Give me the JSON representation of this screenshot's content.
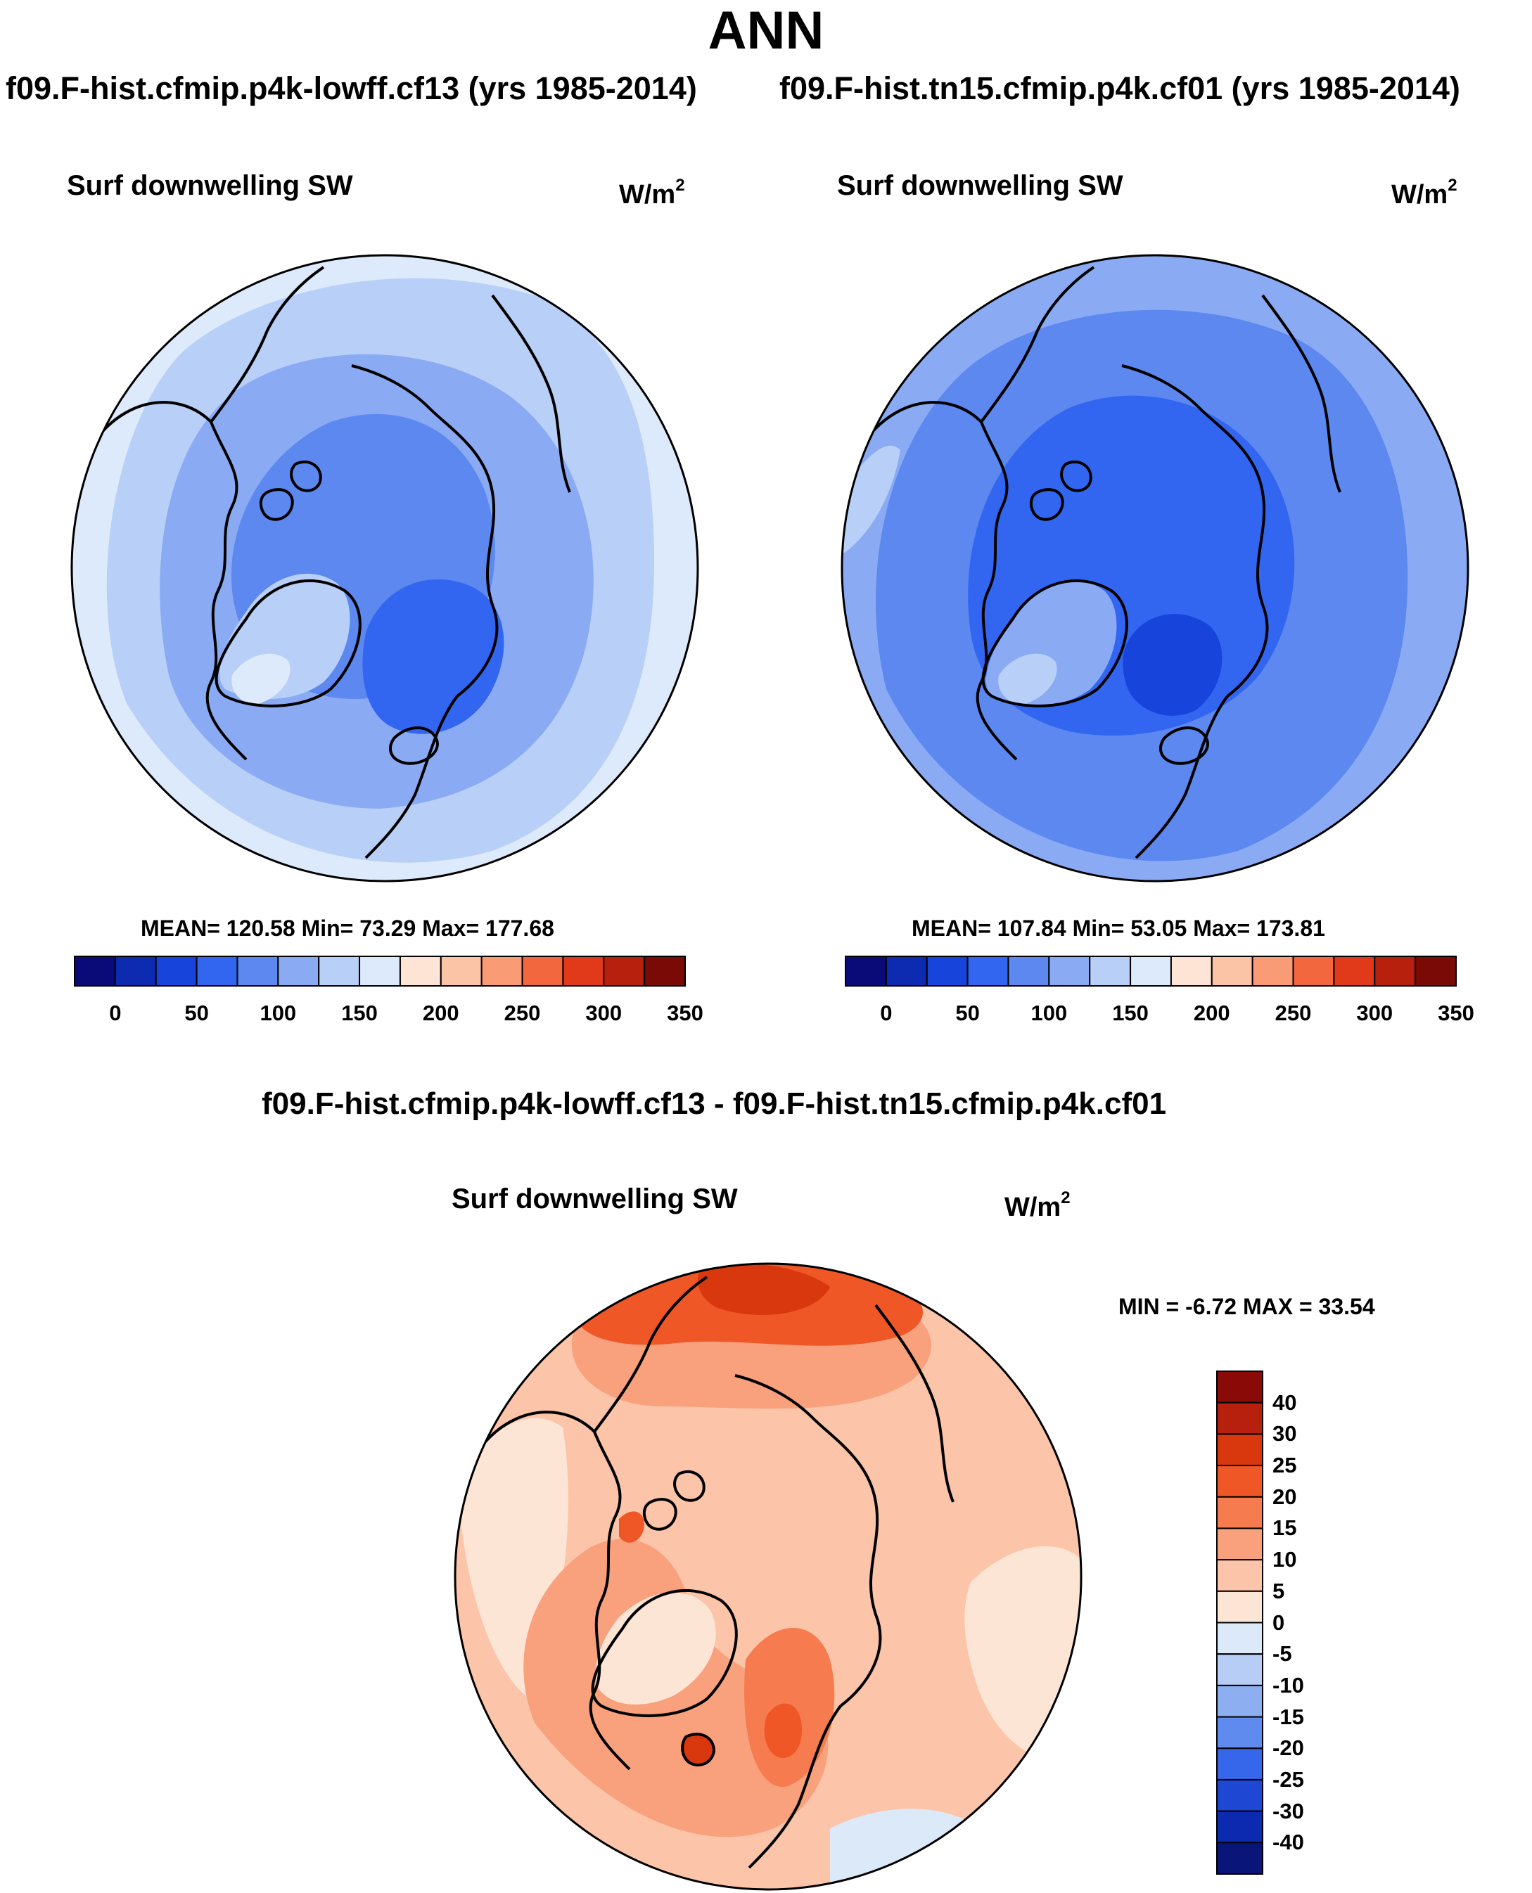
{
  "figure": {
    "title": "ANN",
    "case_a": "f09.F-hist.cfmip.p4k-lowff.cf13 (yrs 1985-2014)",
    "case_b": "f09.F-hist.tn15.cfmip.p4k.cf01 (yrs 1985-2014)",
    "diff_title": "f09.F-hist.cfmip.p4k-lowff.cf13 - f09.F-hist.tn15.cfmip.p4k.cf01"
  },
  "chart_data": [
    {
      "type": "heatmap",
      "projection": "north-polar-stereographic",
      "title": "Surf downwelling SW",
      "units_base": "W/m",
      "units_exp": "2",
      "stats": {
        "mean": 120.58,
        "min": 73.29,
        "max": 177.68
      },
      "stats_text": "MEAN= 120.58  Min=  73.29  Max= 177.68",
      "colorbar": {
        "orientation": "horizontal",
        "ticks": [
          "0",
          "50",
          "100",
          "150",
          "200",
          "250",
          "300",
          "350"
        ],
        "colors": [
          "#0a0a78",
          "#0c2bb0",
          "#1745dc",
          "#3366f0",
          "#5c88f0",
          "#8aabf4",
          "#b8cff8",
          "#ddeafb",
          "#fde4d4",
          "#fcc4a6",
          "#f99b74",
          "#f2673e",
          "#e03a1a",
          "#b8200e",
          "#7a0a06"
        ]
      }
    },
    {
      "type": "heatmap",
      "projection": "north-polar-stereographic",
      "title": "Surf downwelling SW",
      "units_base": "W/m",
      "units_exp": "2",
      "stats": {
        "mean": 107.84,
        "min": 53.05,
        "max": 173.81
      },
      "stats_text": "MEAN= 107.84  Min=  53.05  Max= 173.81",
      "colorbar": {
        "orientation": "horizontal",
        "ticks": [
          "0",
          "50",
          "100",
          "150",
          "200",
          "250",
          "300",
          "350"
        ],
        "colors": [
          "#0a0a78",
          "#0c2bb0",
          "#1745dc",
          "#3366f0",
          "#5c88f0",
          "#8aabf4",
          "#b8cff8",
          "#ddeafb",
          "#fde4d4",
          "#fcc4a6",
          "#f99b74",
          "#f2673e",
          "#e03a1a",
          "#b8200e",
          "#7a0a06"
        ]
      }
    },
    {
      "type": "heatmap",
      "projection": "north-polar-stereographic",
      "title": "Surf downwelling SW",
      "units_base": "W/m",
      "units_exp": "2",
      "stats": {
        "min": -6.72,
        "max": 33.54
      },
      "stats_text": "MIN =  -6.72 MAX =  33.54",
      "colorbar": {
        "orientation": "vertical",
        "labels_top_to_bottom": [
          "40",
          "30",
          "25",
          "20",
          "15",
          "10",
          "5",
          "0",
          "-5",
          "-10",
          "-15",
          "-20",
          "-25",
          "-30",
          "-40"
        ],
        "colors_top_to_bottom": [
          "#8a0a08",
          "#b8200e",
          "#d9380f",
          "#ef5727",
          "#f67b4f",
          "#f9a07c",
          "#fcc4a8",
          "#fde5d6",
          "#dce9f9",
          "#b8cdf6",
          "#8eaef2",
          "#5f8bee",
          "#3666ea",
          "#1e48d4",
          "#0c2ab0",
          "#0a157a"
        ]
      }
    }
  ]
}
